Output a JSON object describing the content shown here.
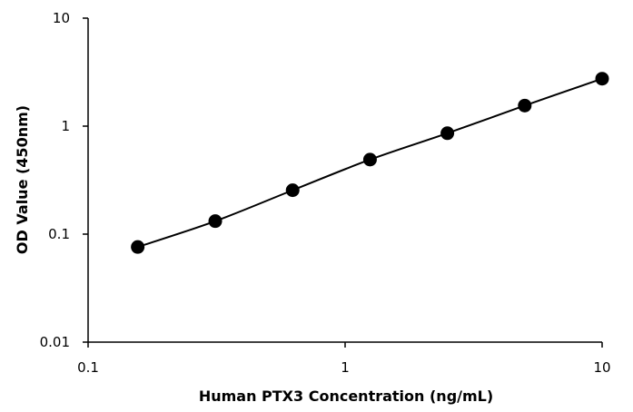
{
  "chart_data": {
    "type": "scatter",
    "title": "",
    "xlabel": "Human PTX3 Concentration (ng/mL)",
    "ylabel": "OD Value (450nm)",
    "x_scale": "log",
    "y_scale": "log",
    "xlim": [
      0.1,
      10
    ],
    "ylim": [
      0.01,
      10
    ],
    "x_ticks": [
      "0.1",
      "1",
      "10"
    ],
    "y_ticks": [
      "0.01",
      "0.1",
      "1",
      "10"
    ],
    "grid": false,
    "legend": "none",
    "series": [
      {
        "x": [
          0.156,
          0.3125,
          0.625,
          1.25,
          2.5,
          5,
          10
        ],
        "y": [
          0.076,
          0.132,
          0.255,
          0.49,
          0.86,
          1.55,
          2.75
        ],
        "marker": "circle",
        "line": "smooth",
        "color": "#000000"
      }
    ]
  }
}
